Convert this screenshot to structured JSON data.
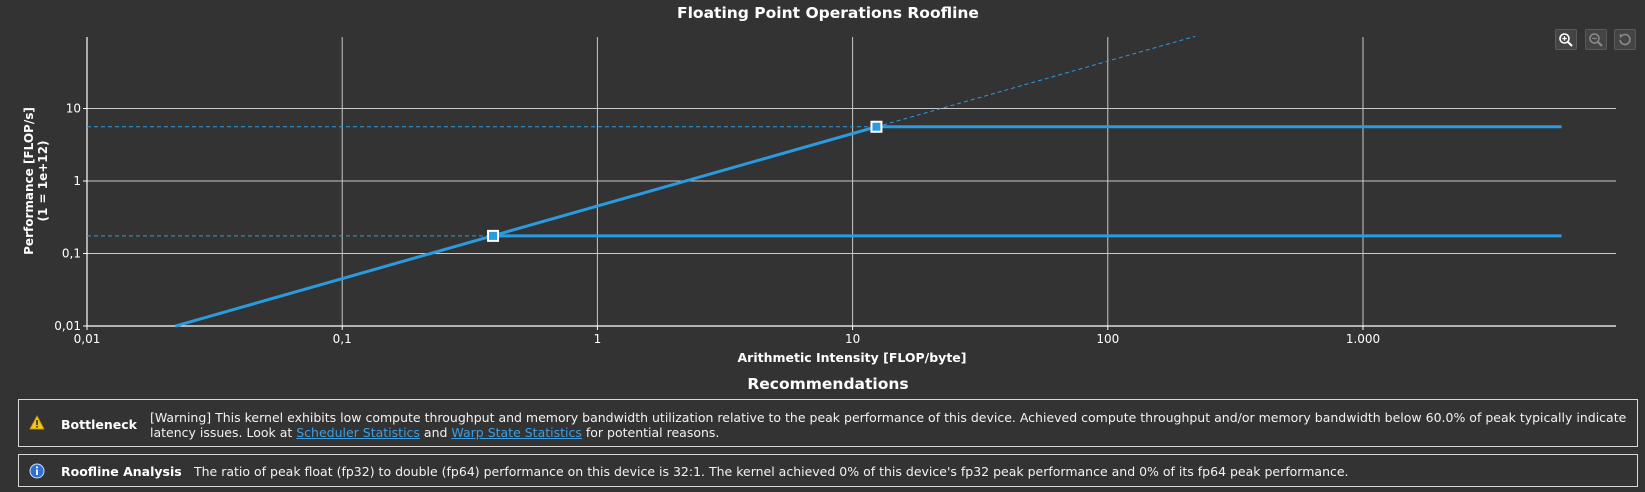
{
  "toolbar": {
    "zoom_in_icon": "zoom-in-icon",
    "zoom_out_icon": "zoom-out-icon",
    "reset_icon": "reset-icon"
  },
  "chart_data": {
    "type": "line",
    "title": "Floating Point Operations Roofline",
    "xlabel": "Arithmetic Intensity [FLOP/byte]",
    "ylabel_line1": "Performance [FLOP/s]",
    "ylabel_line2": "(1 = 1e+12)",
    "x_scale": "log",
    "y_scale": "log",
    "xlim": [
      0.01,
      6000
    ],
    "ylim": [
      0.01,
      100
    ],
    "x_ticks": [
      {
        "value": 0.01,
        "label": "0,01"
      },
      {
        "value": 0.1,
        "label": "0,1"
      },
      {
        "value": 1,
        "label": "1"
      },
      {
        "value": 10,
        "label": "10"
      },
      {
        "value": 100,
        "label": "100"
      },
      {
        "value": 1000,
        "label": "1.000"
      }
    ],
    "y_ticks": [
      {
        "value": 0.01,
        "label": "0,01"
      },
      {
        "value": 0.1,
        "label": "0,1"
      },
      {
        "value": 1,
        "label": "1"
      },
      {
        "value": 10,
        "label": "10"
      }
    ],
    "grid": true,
    "color": "#2a9be0",
    "memory_roof": {
      "bandwidth": 0.45,
      "x_start": 0.0222
    },
    "compute_roofs": [
      {
        "peak": 5.6,
        "ridge_x": 12.4
      },
      {
        "peak": 0.175,
        "ridge_x": 0.39
      }
    ],
    "roof_end_x": 6000,
    "dashed_extension": {
      "x_start": 12.4,
      "x_end": 220
    }
  },
  "recommendations": {
    "title": "Recommendations",
    "items": [
      {
        "icon": "warning-icon",
        "heading": "Bottleneck",
        "text_before": "[Warning] This kernel exhibits low compute throughput and memory bandwidth utilization relative to the peak performance of this device. Achieved compute throughput and/or memory bandwidth below 60.0% of peak typically indicate latency issues. Look at ",
        "link1": "Scheduler Statistics",
        "text_mid": " and ",
        "link2": "Warp State Statistics",
        "text_after": " for potential reasons."
      },
      {
        "icon": "info-icon",
        "heading": "Roofline Analysis",
        "text": "The ratio of peak float (fp32) to double (fp64) performance on this device is 32:1. The kernel achieved 0% of this device's fp32 peak performance and 0% of its fp64 peak performance."
      }
    ]
  }
}
